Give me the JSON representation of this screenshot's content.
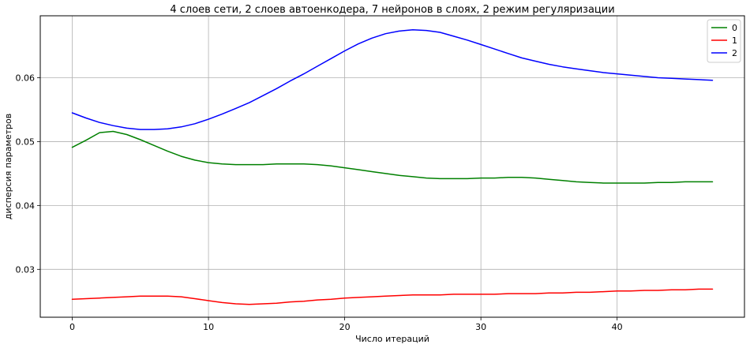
{
  "chart_data": {
    "type": "line",
    "title": "4 слоев сети, 2 слоев автоенкодера, 7 нейронов в слоях,  2 режим регуляризации",
    "xlabel": "Число итераций",
    "ylabel": "дисперсия параметров",
    "xlim": [
      -2.35,
      49.35
    ],
    "ylim": [
      0.0225,
      0.0697
    ],
    "xticks": [
      "0",
      "10",
      "20",
      "30",
      "40"
    ],
    "xtick_values": [
      0,
      10,
      20,
      30,
      40
    ],
    "yticks": [
      "0.03",
      "0.04",
      "0.05",
      "0.06"
    ],
    "ytick_values": [
      0.03,
      0.04,
      0.05,
      0.06
    ],
    "grid": true,
    "legend_position": "top-right",
    "x": [
      0,
      1,
      2,
      3,
      4,
      5,
      6,
      7,
      8,
      9,
      10,
      11,
      12,
      13,
      14,
      15,
      16,
      17,
      18,
      19,
      20,
      21,
      22,
      23,
      24,
      25,
      26,
      27,
      28,
      29,
      30,
      31,
      32,
      33,
      34,
      35,
      36,
      37,
      38,
      39,
      40,
      41,
      42,
      43,
      44,
      45,
      46,
      47
    ],
    "series": [
      {
        "name": "0",
        "color": "#008000",
        "values": [
          0.0491,
          0.0502,
          0.0514,
          0.0516,
          0.0511,
          0.0503,
          0.0494,
          0.0485,
          0.0477,
          0.0471,
          0.0467,
          0.0465,
          0.0464,
          0.0464,
          0.0464,
          0.0465,
          0.0465,
          0.0465,
          0.0464,
          0.0462,
          0.0459,
          0.0456,
          0.0453,
          0.045,
          0.0447,
          0.0445,
          0.0443,
          0.0442,
          0.0442,
          0.0442,
          0.0443,
          0.0443,
          0.0444,
          0.0444,
          0.0443,
          0.0441,
          0.0439,
          0.0437,
          0.0436,
          0.0435,
          0.0435,
          0.0435,
          0.0435,
          0.0436,
          0.0436,
          0.0437,
          0.0437,
          0.0437
        ]
      },
      {
        "name": "1",
        "color": "#ff0000",
        "values": [
          0.0253,
          0.0254,
          0.0255,
          0.0256,
          0.0257,
          0.0258,
          0.0258,
          0.0258,
          0.0257,
          0.0254,
          0.0251,
          0.0248,
          0.0246,
          0.0245,
          0.0246,
          0.0247,
          0.0249,
          0.025,
          0.0252,
          0.0253,
          0.0255,
          0.0256,
          0.0257,
          0.0258,
          0.0259,
          0.026,
          0.026,
          0.026,
          0.0261,
          0.0261,
          0.0261,
          0.0261,
          0.0262,
          0.0262,
          0.0262,
          0.0263,
          0.0263,
          0.0264,
          0.0264,
          0.0265,
          0.0266,
          0.0266,
          0.0267,
          0.0267,
          0.0268,
          0.0268,
          0.0269,
          0.0269
        ]
      },
      {
        "name": "2",
        "color": "#0000ff",
        "values": [
          0.0545,
          0.0537,
          0.053,
          0.0525,
          0.0521,
          0.0519,
          0.0519,
          0.052,
          0.0523,
          0.0528,
          0.0535,
          0.0543,
          0.0552,
          0.0561,
          0.0572,
          0.0583,
          0.0595,
          0.0606,
          0.0618,
          0.063,
          0.0642,
          0.0653,
          0.0662,
          0.0669,
          0.0673,
          0.0675,
          0.0674,
          0.0671,
          0.0665,
          0.0659,
          0.0652,
          0.0645,
          0.0638,
          0.0631,
          0.0626,
          0.0621,
          0.0617,
          0.0614,
          0.0611,
          0.0608,
          0.0606,
          0.0604,
          0.0602,
          0.06,
          0.0599,
          0.0598,
          0.0597,
          0.0596
        ]
      }
    ]
  }
}
